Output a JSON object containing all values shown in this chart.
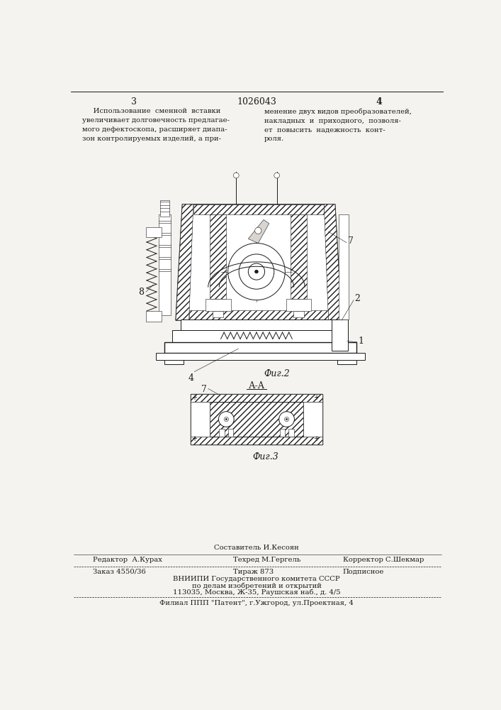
{
  "page_bg": "#f5f3ef",
  "draw_color": "#1a1a1a",
  "page_number_left": "3",
  "page_number_right": "4",
  "patent_number": "1026043",
  "text_left": "     Использование  сменной  вставки\nувеличивает долговечность предлагае-\nмого дефектоскопа, расширяет диапа-\nзон контролируемых изделий, а при-",
  "text_right": "менение двух видов преобразователей,\nнакладных  и  приходного,  позволя-\nет  повысить  надежность  конт-\nроля.",
  "fig2_label": "Фиг.2",
  "fig3_label": "Фиг.3",
  "section_label": "А-А",
  "footer_sostavitel": "Составитель И.Кесоян",
  "footer_editor": "Редактор  А.Курах",
  "footer_tehred": "Техред М.Гергель",
  "footer_korrektor": "Корректор С.Шекмар",
  "footer_zakaz": "Заказ 4550/36",
  "footer_tirazh": "Тираж 873",
  "footer_podpisnoe": "Подписное",
  "footer_vniiipi": "ВНИИПИ Государственного комитета СССР",
  "footer_po_delam": "по делам изобретений и открытий",
  "footer_address": "113035, Москва, Ж-35, Раушская наб., д. 4/5",
  "footer_filial": "Филиал ППП \"Патент\", г.Ужгород, ул.Проектная, 4"
}
